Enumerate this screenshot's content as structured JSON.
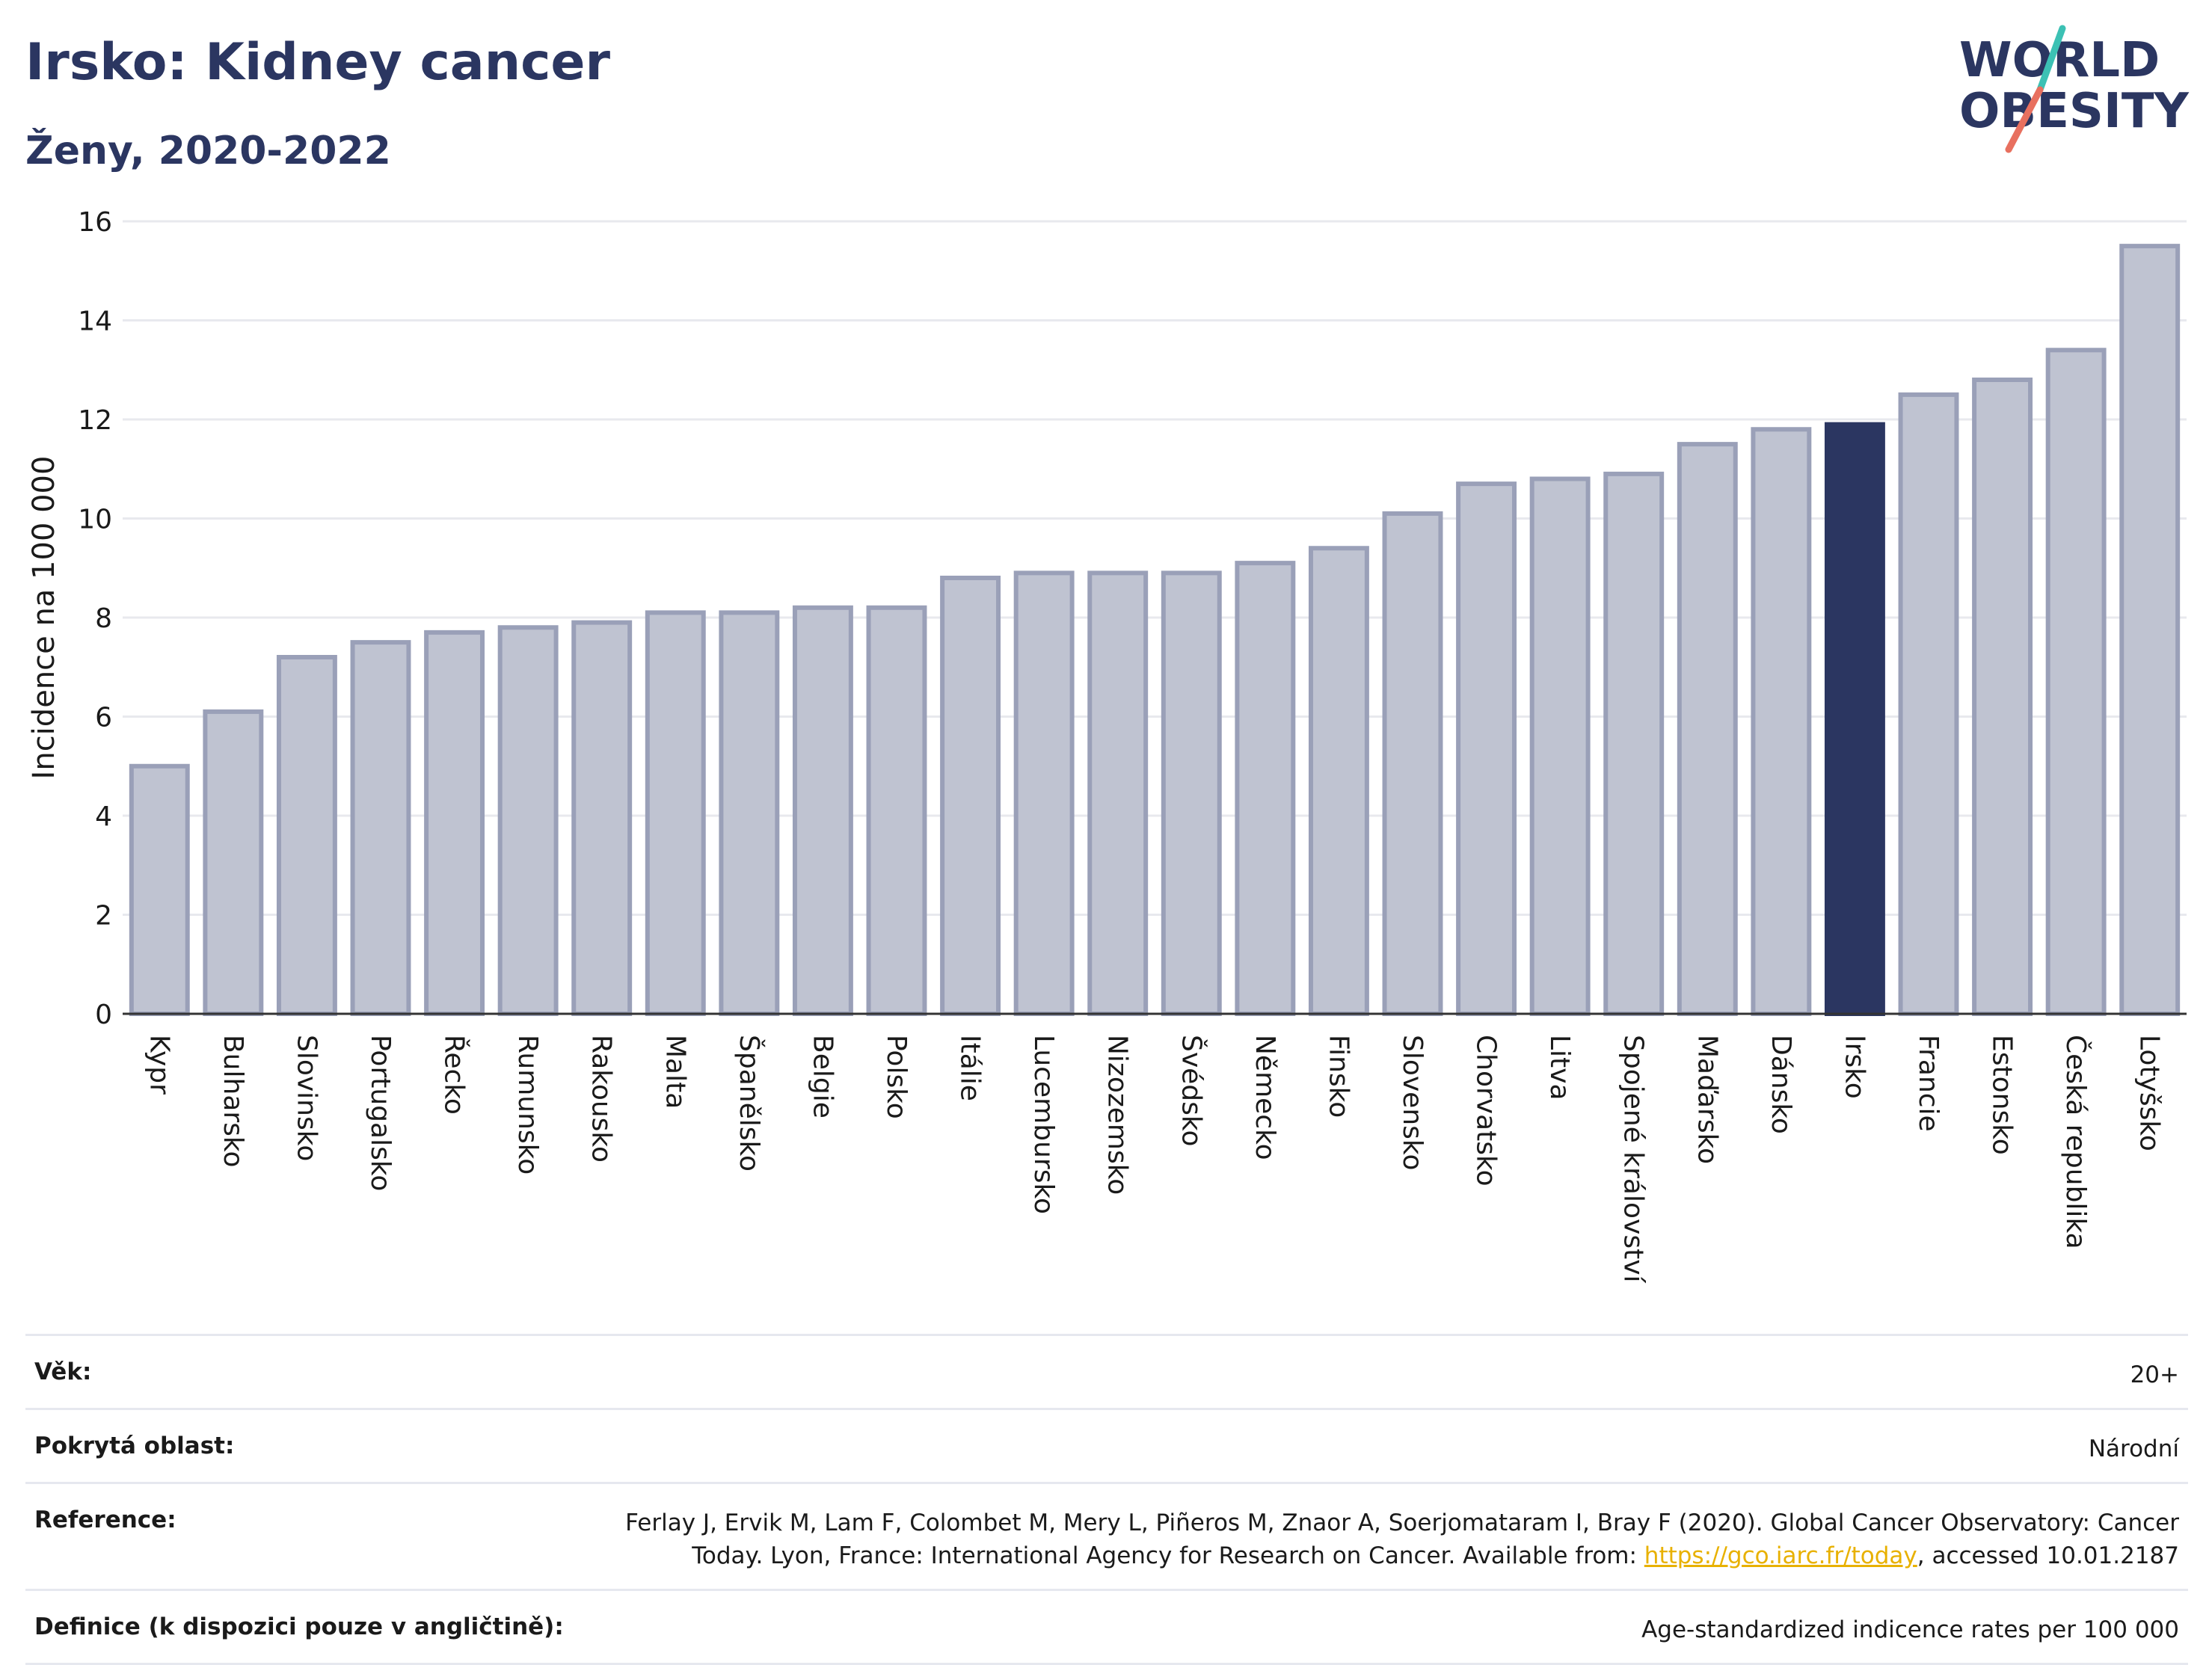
{
  "title": "Irsko: Kidney cancer",
  "subtitle": "Ženy, 2020-2022",
  "logo": {
    "line1": "WORLD",
    "line2": "OBESITY"
  },
  "colors": {
    "bar": "#bfc3d1",
    "bar_stroke": "#9aa0b8",
    "highlight": "#2b3661",
    "grid": "#e8e9ee",
    "text": "#2b3661"
  },
  "chart_data": {
    "type": "bar",
    "categories": [
      "Kypr",
      "Bulharsko",
      "Slovinsko",
      "Portugalsko",
      "Řecko",
      "Rumunsko",
      "Rakousko",
      "Malta",
      "Španělsko",
      "Belgie",
      "Polsko",
      "Itálie",
      "Lucembursko",
      "Nizozemsko",
      "Švédsko",
      "Německo",
      "Finsko",
      "Slovensko",
      "Chorvatsko",
      "Litva",
      "Spojené království",
      "Maďarsko",
      "Dánsko",
      "Irsko",
      "Francie",
      "Estonsko",
      "Česká republika",
      "Lotyšsko"
    ],
    "values": [
      5.0,
      6.1,
      7.2,
      7.5,
      7.7,
      7.8,
      7.9,
      8.1,
      8.1,
      8.2,
      8.2,
      8.8,
      8.9,
      8.9,
      8.9,
      9.1,
      9.4,
      10.1,
      10.7,
      10.8,
      10.9,
      11.5,
      11.8,
      11.9,
      12.5,
      12.8,
      13.4,
      15.5
    ],
    "highlight": "Irsko",
    "ylabel": "Incidence na 100 000",
    "ylim": [
      0,
      16
    ],
    "yticks": [
      0,
      2,
      4,
      6,
      8,
      10,
      12,
      14,
      16
    ],
    "grid": true
  },
  "meta": {
    "age_label": "Věk:",
    "age_value": "20+",
    "area_label": "Pokrytá oblast:",
    "area_value": "Národní",
    "ref_label": "Reference:",
    "ref_text_1": "Ferlay J, Ervik M, Lam F, Colombet M, Mery L, Piñeros M, Znaor A, Soerjomataram I, Bray F (2020). Global Cancer Observatory: Cancer Today. Lyon, France: International Agency for Research on Cancer. Available from: ",
    "ref_link": "https://gco.iarc.fr/today",
    "ref_text_2": ", accessed 10.01.2187",
    "def_label": "Definice (k dispozici pouze v angličtině):",
    "def_value": "Age-standardized indicence rates per 100 000"
  }
}
